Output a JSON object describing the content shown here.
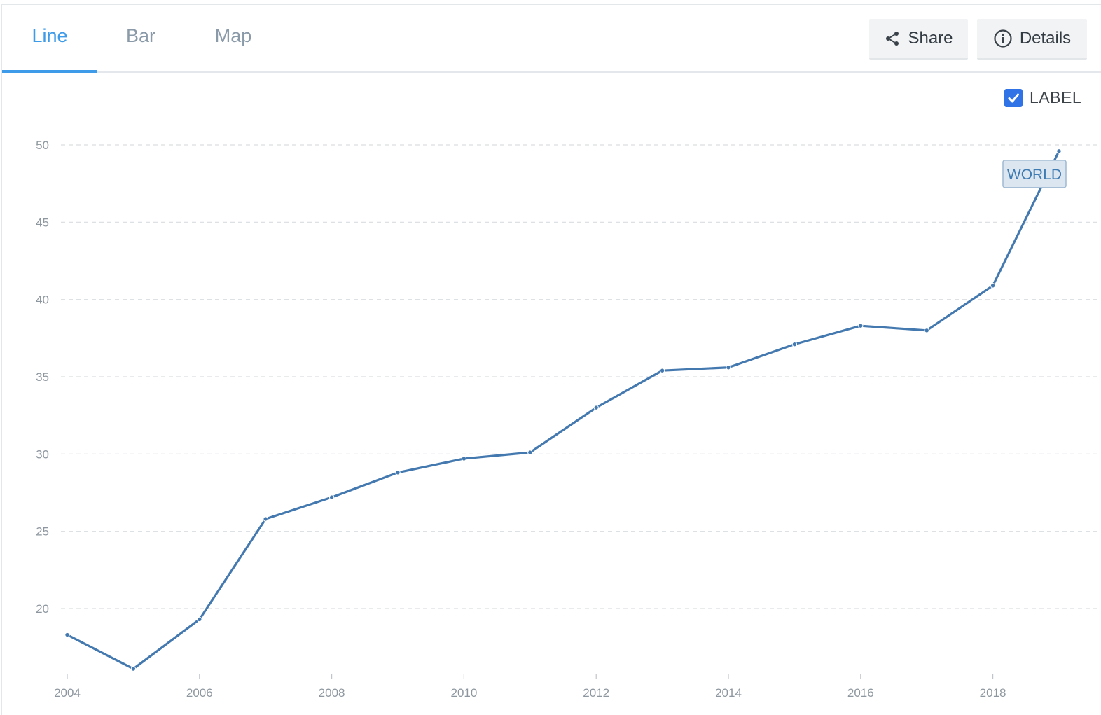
{
  "tabs": [
    {
      "label": "Line",
      "active": true
    },
    {
      "label": "Bar",
      "active": false
    },
    {
      "label": "Map",
      "active": false
    }
  ],
  "actions": {
    "share_label": "Share",
    "share_icon": "share-icon",
    "details_label": "Details",
    "details_icon": "info-icon"
  },
  "label_toggle": {
    "label": "LABEL",
    "checked": true
  },
  "colors": {
    "accent": "#3d9be9",
    "line": "#4479b0",
    "checkbox": "#2f73e6"
  },
  "chart_data": {
    "type": "line",
    "title": "",
    "xlabel": "",
    "ylabel": "",
    "x": [
      2004,
      2005,
      2006,
      2007,
      2008,
      2009,
      2010,
      2011,
      2012,
      2013,
      2014,
      2015,
      2016,
      2017,
      2018,
      2019
    ],
    "series": [
      {
        "name": "WORLD",
        "values": [
          18.3,
          16.1,
          19.3,
          25.8,
          27.2,
          28.8,
          29.7,
          30.1,
          33.0,
          35.4,
          35.6,
          37.1,
          38.3,
          38.0,
          40.9,
          49.6
        ]
      }
    ],
    "xticks": [
      2004,
      2006,
      2008,
      2010,
      2012,
      2014,
      2016,
      2018
    ],
    "yticks": [
      20,
      25,
      30,
      35,
      40,
      45,
      50
    ],
    "xlim": [
      2004,
      2019
    ],
    "ylim": [
      16,
      50
    ],
    "grid": true,
    "legend": "none",
    "series_label_visible": true
  }
}
